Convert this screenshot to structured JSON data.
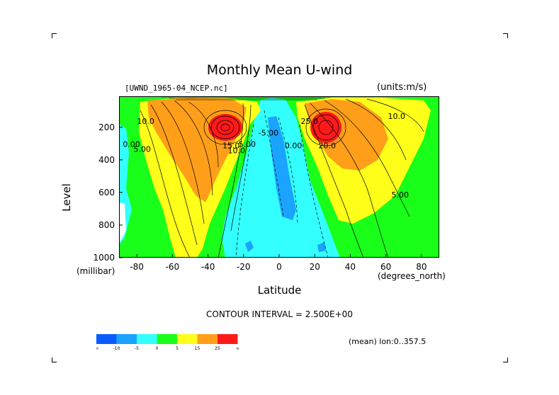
{
  "chart_data": {
    "type": "contour",
    "title": "Monthly Mean U-wind",
    "file_info": "[UWND_1965-04_NCEP.nc]",
    "units": "(units:m/s)",
    "xlabel": "Latitude",
    "x_unit": "(degrees_north)",
    "ylabel": "Level",
    "y_unit": "(millibar)",
    "xlim": [
      -90,
      90
    ],
    "ylim": [
      1000,
      10
    ],
    "x_ticks": [
      "-80",
      "-60",
      "-40",
      "-20",
      "0",
      "20",
      "40",
      "60",
      "80"
    ],
    "x_tick_values": [
      -80,
      -60,
      -40,
      -20,
      0,
      20,
      40,
      60,
      80
    ],
    "y_ticks": [
      "200",
      "400",
      "600",
      "800",
      "1000"
    ],
    "y_tick_values": [
      200,
      400,
      600,
      800,
      1000
    ],
    "contour_interval_text": "CONTOUR INTERVAL = 2.500E+00",
    "mean_text": "(mean) lon:0..357.5",
    "contour_labels": [
      {
        "text": "10.0",
        "x": -75,
        "y": 180
      },
      {
        "text": "0.00",
        "x": -83,
        "y": 320
      },
      {
        "text": "5.00",
        "x": -77,
        "y": 350
      },
      {
        "text": "15.0",
        "x": -27,
        "y": 330
      },
      {
        "text": "10.0",
        "x": -24,
        "y": 360
      },
      {
        "text": "5.00",
        "x": -18,
        "y": 320
      },
      {
        "text": "-5.00",
        "x": -6,
        "y": 250
      },
      {
        "text": "0.00",
        "x": 8,
        "y": 330
      },
      {
        "text": "25.0",
        "x": 17,
        "y": 180
      },
      {
        "text": "20.0",
        "x": 27,
        "y": 330
      },
      {
        "text": "10.0",
        "x": 66,
        "y": 150
      },
      {
        "text": "5.00",
        "x": 68,
        "y": 630
      }
    ],
    "jets": [
      {
        "lat": -32,
        "level": 200,
        "max": 30
      },
      {
        "lat": 27,
        "level": 200,
        "max": 35
      }
    ],
    "colorbar": {
      "labels": [
        "-∞",
        "-10",
        "-5",
        "0",
        "5",
        "15",
        "25",
        "∞"
      ],
      "colors": [
        "#0a5cff",
        "#1aa3ff",
        "#33ffff",
        "#19ff19",
        "#ffff19",
        "#ff9f19",
        "#ff1919"
      ]
    },
    "fill_colors": {
      "neg10": "#0a5cff",
      "neg5": "#1aa3ff",
      "neg0": "#33ffff",
      "pos0": "#19ff19",
      "pos5": "#ffff19",
      "pos15": "#ff9f19",
      "pos25": "#ff1919"
    }
  }
}
